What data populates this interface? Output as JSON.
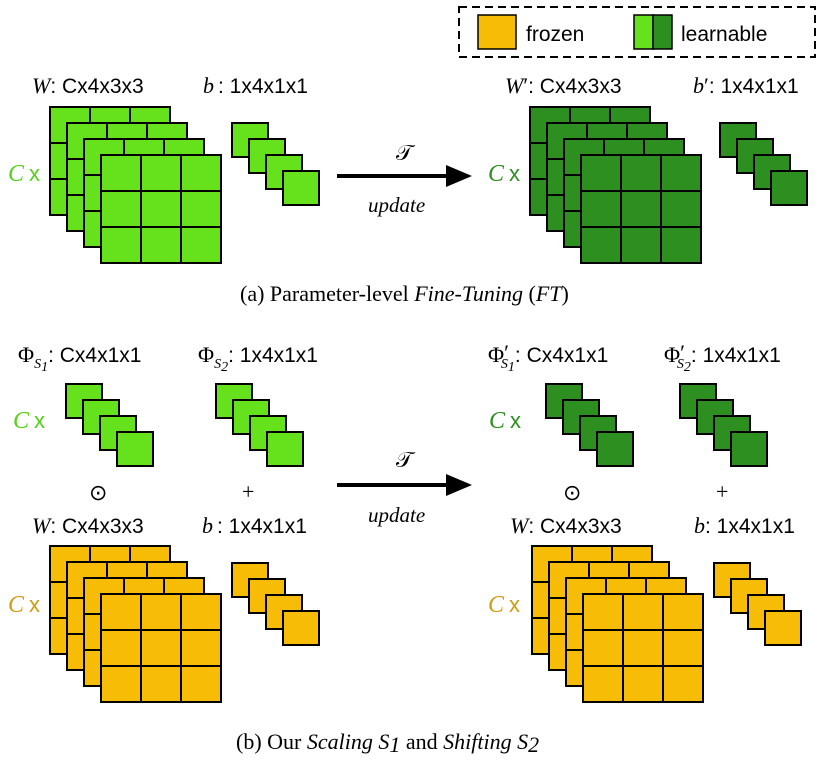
{
  "colors": {
    "frozen": "#f7bc05",
    "learnable_light": "#66e21c",
    "learnable_dark": "#2d8f1f",
    "c_label_light": "#55d21a",
    "c_label_dark": "#2d8f1f",
    "c_label_frozen": "#d09c12"
  },
  "legend": {
    "frozen_label": "frozen",
    "learnable_label": "learnable"
  },
  "shape_suffix": {
    "c4x3x3": ": Cx4x3x3",
    "b4x1x1": ": 1x4x1x1",
    "c4x1x1": ": Cx4x1x1",
    "b4x1x1_nocolon_space": ": 1x4x1x1"
  },
  "symbols": {
    "W": "W",
    "Wp": "W",
    "prime": "′",
    "b": "b",
    "bp": "b",
    "Phi": "Φ",
    "S1": "S",
    "S2": "S",
    "one": "1",
    "two": "2",
    "C": "C",
    "times": "x",
    "odot": "⊙",
    "plus": "+"
  },
  "arrow": {
    "top_label": "𝒯",
    "bottom_label": "update"
  },
  "captions": {
    "a_prefix": "(a) Parameter-level ",
    "a_italic": "Fine-Tuning",
    "a_mid": " (",
    "a_italic2": "FT",
    "a_end": ")",
    "b_prefix": "(b) Our ",
    "b_italic1": "Scaling S",
    "b_sub1": "1",
    "b_mid": " and ",
    "b_italic2": "Shifting S",
    "b_sub2": "2"
  }
}
